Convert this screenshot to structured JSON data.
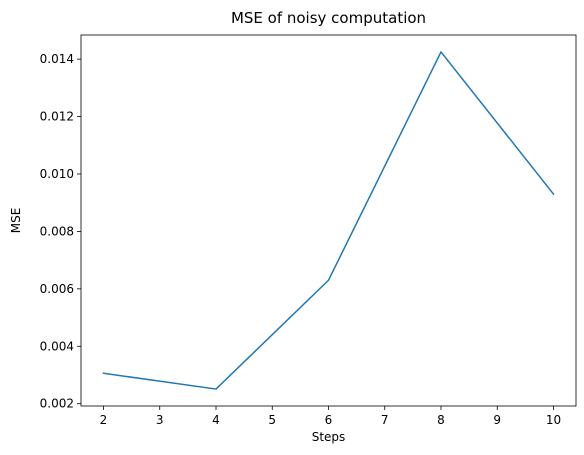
{
  "chart_data": {
    "type": "line",
    "title": "MSE of noisy computation",
    "xlabel": "Steps",
    "ylabel": "MSE",
    "x": [
      2,
      4,
      6,
      8,
      10
    ],
    "series": [
      {
        "values": [
          0.00306,
          0.00251,
          0.0063,
          0.01425,
          0.0093
        ],
        "color": "#1f77b4"
      }
    ],
    "xlim": [
      1.6,
      10.4
    ],
    "ylim": [
      0.00192,
      0.01484
    ],
    "xticks": [
      2,
      3,
      4,
      5,
      6,
      7,
      8,
      9,
      10
    ],
    "xtick_labels": [
      "2",
      "3",
      "4",
      "5",
      "6",
      "7",
      "8",
      "9",
      "10"
    ],
    "yticks": [
      0.002,
      0.004,
      0.006,
      0.008,
      0.01,
      0.012,
      0.014
    ],
    "ytick_labels": [
      "0.002",
      "0.004",
      "0.006",
      "0.008",
      "0.010",
      "0.012",
      "0.014"
    ],
    "grid": false,
    "legend": false
  }
}
